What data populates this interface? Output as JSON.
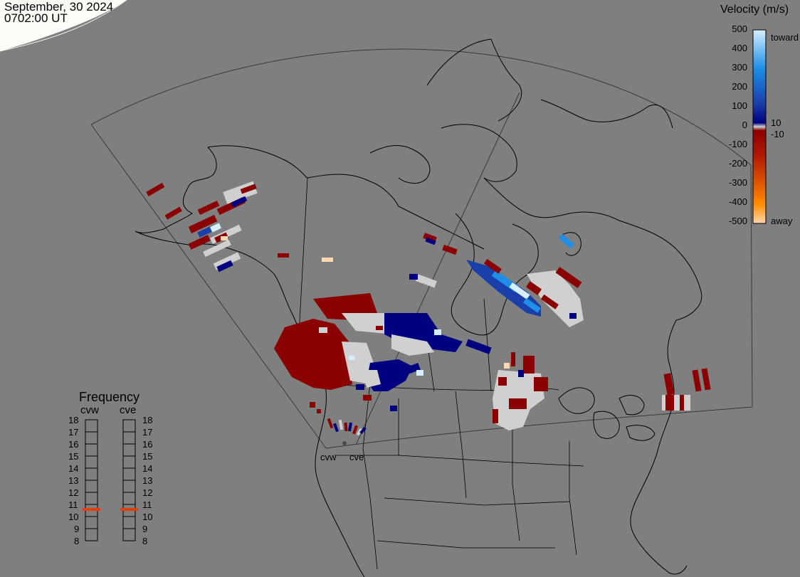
{
  "header": {
    "date": "September, 30 2024",
    "time": "0702:00 UT"
  },
  "velocity_scale": {
    "title": "Velocity (m/s)",
    "ticks": [
      "500",
      "400",
      "300",
      "200",
      "100",
      "0",
      "-100",
      "-200",
      "-300",
      "-400",
      "-500"
    ],
    "inner_labels": [
      "10",
      "-10"
    ],
    "toward_label": "toward",
    "away_label": "away",
    "colors": {
      "toward_high": "#d6efff",
      "toward_mid": "#1e8ee6",
      "toward_low": "#1a3faa",
      "toward_min": "#000080",
      "zero": "#d0d0d0",
      "away_min": "#8b0000",
      "away_mid": "#c83200",
      "away_high": "#ff8c00",
      "away_max": "#ffd8b0"
    }
  },
  "frequency_panel": {
    "title": "Frequency",
    "columns": [
      {
        "label": "cvw",
        "value_mhz": 11
      },
      {
        "label": "cve",
        "value_mhz": 11
      }
    ],
    "ticks": [
      "18",
      "17",
      "16",
      "15",
      "14",
      "13",
      "12",
      "11",
      "10",
      "9",
      "8"
    ],
    "marker_color": "#e04010"
  },
  "radar_sites": [
    {
      "label": "cvw"
    },
    {
      "label": "cve"
    }
  ],
  "map": {
    "background": "#7f7f7f",
    "daylight_color": "#fbfbf8",
    "line_color": "#000000",
    "fov_line_color": "#3a3a3a"
  }
}
